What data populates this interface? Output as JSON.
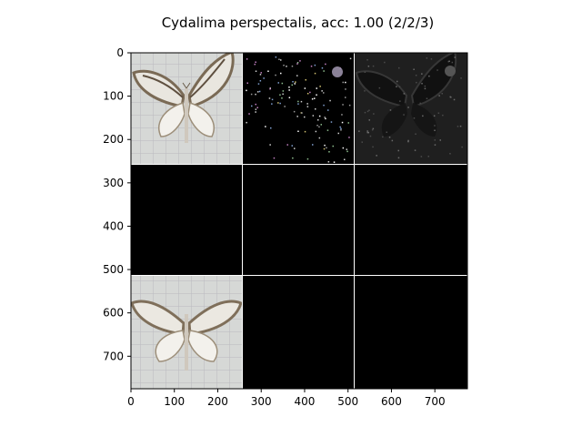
{
  "figure": {
    "title": "Cydalima perspectalis, acc: 1.00 (2/2/3)"
  },
  "axes": {
    "x_ticks": [
      0,
      100,
      200,
      300,
      400,
      500,
      600,
      700
    ],
    "y_ticks": [
      0,
      100,
      200,
      300,
      400,
      500,
      600,
      700
    ],
    "x_range": [
      0,
      775
    ],
    "y_range": [
      775,
      0
    ]
  },
  "grid": {
    "rows": 3,
    "cols": 3,
    "tile_size": 256,
    "gap": 3,
    "cells": [
      {
        "row": 0,
        "col": 0,
        "kind": "moth-photo"
      },
      {
        "row": 0,
        "col": 1,
        "kind": "attribution-color-speckle"
      },
      {
        "row": 0,
        "col": 2,
        "kind": "masked-dark-moth"
      },
      {
        "row": 1,
        "col": 0,
        "kind": "black"
      },
      {
        "row": 1,
        "col": 1,
        "kind": "black"
      },
      {
        "row": 1,
        "col": 2,
        "kind": "black"
      },
      {
        "row": 2,
        "col": 0,
        "kind": "moth-photo"
      },
      {
        "row": 2,
        "col": 1,
        "kind": "black"
      },
      {
        "row": 2,
        "col": 2,
        "kind": "black"
      }
    ]
  },
  "colors": {
    "photo_bg": "#d6d8d6",
    "tile_black": "#000000",
    "dark_tile_bg": "#1f1f1f",
    "separator": "#ffffff"
  }
}
